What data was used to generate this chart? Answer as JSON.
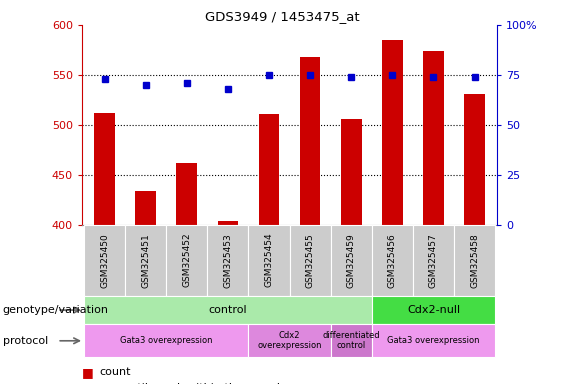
{
  "title": "GDS3949 / 1453475_at",
  "samples": [
    "GSM325450",
    "GSM325451",
    "GSM325452",
    "GSM325453",
    "GSM325454",
    "GSM325455",
    "GSM325459",
    "GSM325456",
    "GSM325457",
    "GSM325458"
  ],
  "counts": [
    512,
    434,
    462,
    404,
    511,
    568,
    506,
    585,
    574,
    531
  ],
  "percentile_ranks": [
    73,
    70,
    71,
    68,
    75,
    75,
    74,
    75,
    74,
    74
  ],
  "ylim_left": [
    400,
    600
  ],
  "ylim_right": [
    0,
    100
  ],
  "yticks_left": [
    400,
    450,
    500,
    550,
    600
  ],
  "yticks_right": [
    0,
    25,
    50,
    75,
    100
  ],
  "bar_color": "#cc0000",
  "dot_color": "#0000cc",
  "genotype_groups": [
    {
      "label": "control",
      "start": 0,
      "end": 7,
      "color": "#aaeaaa"
    },
    {
      "label": "Cdx2-null",
      "start": 7,
      "end": 10,
      "color": "#44dd44"
    }
  ],
  "protocol_groups": [
    {
      "label": "Gata3 overexpression",
      "start": 0,
      "end": 4,
      "color": "#ee99ee"
    },
    {
      "label": "Cdx2\noverexpression",
      "start": 4,
      "end": 6,
      "color": "#dd88dd"
    },
    {
      "label": "differentiated\ncontrol",
      "start": 6,
      "end": 7,
      "color": "#cc77cc"
    },
    {
      "label": "Gata3 overexpression",
      "start": 7,
      "end": 10,
      "color": "#ee99ee"
    }
  ],
  "legend_count_color": "#cc0000",
  "legend_dot_color": "#0000cc",
  "row_label_genotype": "genotype/variation",
  "row_label_protocol": "protocol",
  "sample_box_color": "#cccccc",
  "ytick_label_right": [
    "0",
    "25",
    "50",
    "75",
    "100%"
  ]
}
